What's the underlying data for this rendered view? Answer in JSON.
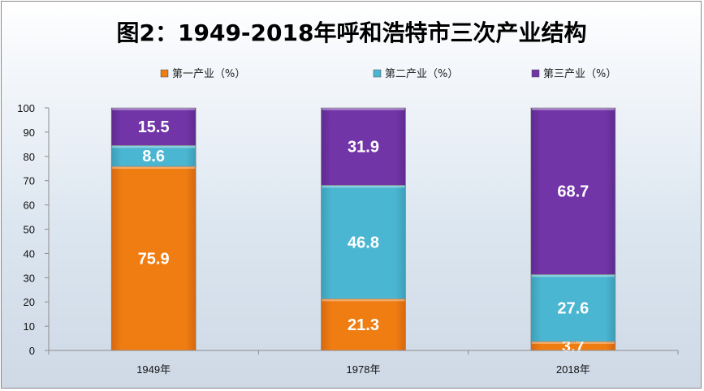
{
  "chart_data": {
    "type": "bar",
    "stacked": true,
    "title": "图2：1949-2018年呼和浩特市三次产业结构",
    "categories": [
      "1949年",
      "1978年",
      "2018年"
    ],
    "series": [
      {
        "name": "第一产业（%）",
        "values": [
          75.9,
          21.3,
          3.7
        ],
        "labels": [
          "75.9",
          "21.3",
          "3.7"
        ],
        "color": "#F07D12"
      },
      {
        "name": "第二产业（%）",
        "values": [
          8.6,
          46.8,
          27.6
        ],
        "labels": [
          "8.6",
          "46.8",
          "27.6"
        ],
        "color": "#4BB6D1"
      },
      {
        "name": "第三产业（%）",
        "values": [
          15.5,
          31.9,
          68.7
        ],
        "labels": [
          "15.5",
          "31.9",
          "68.7"
        ],
        "color": "#7235A8"
      }
    ],
    "ylim": [
      0,
      100
    ],
    "yticks": [
      "0",
      "10",
      "20",
      "30",
      "40",
      "50",
      "60",
      "70",
      "80",
      "90",
      "100"
    ],
    "grid": false,
    "legend_position": "top-center",
    "xlabel": "",
    "ylabel": ""
  }
}
